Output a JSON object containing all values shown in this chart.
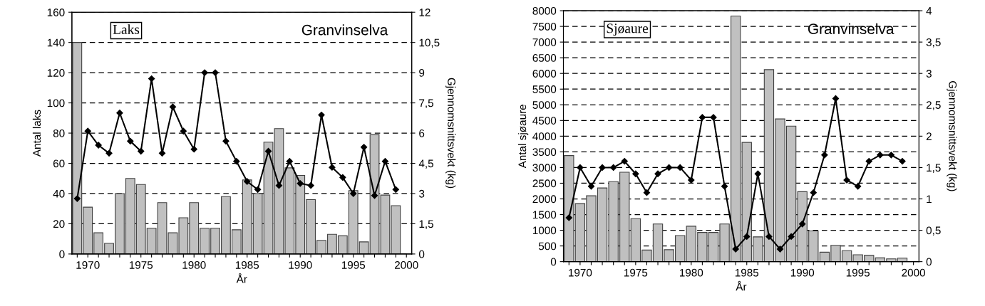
{
  "chart_data": [
    {
      "type": "bar",
      "xlabel": "År",
      "ylabel": "Antal laks",
      "y2label": "Gjennomsnittsvekt (kg)",
      "annotations": [
        "Laks",
        "Granvinselva"
      ],
      "x": [
        1969,
        1970,
        1971,
        1972,
        1973,
        1974,
        1975,
        1976,
        1977,
        1978,
        1979,
        1980,
        1981,
        1982,
        1983,
        1984,
        1985,
        1986,
        1987,
        1988,
        1989,
        1990,
        1991,
        1992,
        1993,
        1994,
        1995,
        1996,
        1997,
        1998,
        1999
      ],
      "series": [
        {
          "color": "#c0c0c0",
          "values": [
            140,
            31,
            14,
            7,
            40,
            50,
            46,
            17,
            34,
            14,
            24,
            34,
            17,
            17,
            38,
            16,
            49,
            40,
            74,
            83,
            57,
            52,
            36,
            9,
            13,
            12,
            42,
            8,
            79,
            39,
            32
          ]
        },
        {
          "type": "line",
          "axis": "y2",
          "color": "#000000",
          "marker": "diamond",
          "line_style": "solid",
          "values": [
            2.75,
            6.1,
            5.4,
            5.0,
            7.0,
            5.6,
            5.1,
            8.7,
            5.0,
            7.3,
            6.1,
            5.2,
            9.0,
            9.0,
            5.6,
            4.6,
            3.6,
            3.2,
            5.1,
            3.4,
            4.6,
            3.5,
            3.4,
            6.9,
            4.3,
            3.8,
            3.0,
            5.3,
            2.9,
            4.6,
            3.2
          ]
        }
      ],
      "xlim": [
        1968.5,
        2000.5
      ],
      "xticks": [
        {
          "value": 1969,
          "label": null
        },
        1970,
        {
          "value": 1971,
          "label": null
        },
        {
          "value": 1972,
          "label": null
        },
        {
          "value": 1973,
          "label": null
        },
        {
          "value": 1974,
          "label": null
        },
        1975,
        {
          "value": 1976,
          "label": null
        },
        {
          "value": 1977,
          "label": null
        },
        {
          "value": 1978,
          "label": null
        },
        {
          "value": 1979,
          "label": null
        },
        1980,
        {
          "value": 1981,
          "label": null
        },
        {
          "value": 1982,
          "label": null
        },
        {
          "value": 1983,
          "label": null
        },
        {
          "value": 1984,
          "label": null
        },
        1985,
        {
          "value": 1986,
          "label": null
        },
        {
          "value": 1987,
          "label": null
        },
        {
          "value": 1988,
          "label": null
        },
        {
          "value": 1989,
          "label": null
        },
        1990,
        {
          "value": 1991,
          "label": null
        },
        {
          "value": 1992,
          "label": null
        },
        {
          "value": 1993,
          "label": null
        },
        {
          "value": 1994,
          "label": null
        },
        1995,
        {
          "value": 1996,
          "label": null
        },
        {
          "value": 1997,
          "label": null
        },
        {
          "value": 1998,
          "label": null
        },
        {
          "value": 1999,
          "label": null
        },
        2000
      ],
      "ylim": [
        0,
        160
      ],
      "yticks": [
        0,
        20,
        40,
        60,
        80,
        100,
        120,
        140,
        160
      ],
      "y2lim": [
        0,
        12
      ],
      "y2ticks": [
        0,
        {
          "value": 1.5,
          "label": "1,5"
        },
        3,
        {
          "value": 4.5,
          "label": "4,5"
        },
        6,
        {
          "value": 7.5,
          "label": "7,5"
        },
        9,
        {
          "value": 10.5,
          "label": "10,5"
        },
        12
      ],
      "grid": "y",
      "legend": false
    },
    {
      "type": "bar",
      "xlabel": "År",
      "ylabel": "Antal sjøaure",
      "y2label": "Gjennomsnittsvekt (kg)",
      "annotations": [
        "Sjøaure",
        "Granvinselva"
      ],
      "x": [
        1969,
        1970,
        1971,
        1972,
        1973,
        1974,
        1975,
        1976,
        1977,
        1978,
        1979,
        1980,
        1981,
        1982,
        1983,
        1984,
        1985,
        1986,
        1987,
        1988,
        1989,
        1990,
        1991,
        1992,
        1993,
        1994,
        1995,
        1996,
        1997,
        1998,
        1999
      ],
      "series": [
        {
          "color": "#c0c0c0",
          "values": [
            3380,
            1850,
            2100,
            2350,
            2550,
            2850,
            1370,
            370,
            1200,
            380,
            830,
            1130,
            930,
            930,
            1200,
            7830,
            3800,
            790,
            6120,
            4550,
            4320,
            2230,
            980,
            300,
            520,
            350,
            220,
            200,
            120,
            90,
            110
          ]
        },
        {
          "type": "line",
          "axis": "y2",
          "color": "#000000",
          "marker": "diamond",
          "line_style": "solid",
          "values": [
            0.7,
            1.5,
            1.2,
            1.5,
            1.5,
            1.6,
            1.4,
            1.1,
            1.4,
            1.5,
            1.5,
            1.3,
            2.3,
            2.3,
            1.2,
            0.2,
            0.4,
            1.4,
            0.4,
            0.2,
            0.4,
            0.6,
            1.1,
            1.7,
            2.6,
            1.3,
            1.2,
            1.6,
            1.7,
            1.7,
            1.6
          ]
        }
      ],
      "xlim": [
        1968.5,
        2000.5
      ],
      "xticks": [
        {
          "value": 1969,
          "label": null
        },
        1970,
        {
          "value": 1971,
          "label": null
        },
        {
          "value": 1972,
          "label": null
        },
        {
          "value": 1973,
          "label": null
        },
        {
          "value": 1974,
          "label": null
        },
        1975,
        {
          "value": 1976,
          "label": null
        },
        {
          "value": 1977,
          "label": null
        },
        {
          "value": 1978,
          "label": null
        },
        {
          "value": 1979,
          "label": null
        },
        1980,
        {
          "value": 1981,
          "label": null
        },
        {
          "value": 1982,
          "label": null
        },
        {
          "value": 1983,
          "label": null
        },
        {
          "value": 1984,
          "label": null
        },
        1985,
        {
          "value": 1986,
          "label": null
        },
        {
          "value": 1987,
          "label": null
        },
        {
          "value": 1988,
          "label": null
        },
        {
          "value": 1989,
          "label": null
        },
        1990,
        {
          "value": 1991,
          "label": null
        },
        {
          "value": 1992,
          "label": null
        },
        {
          "value": 1993,
          "label": null
        },
        {
          "value": 1994,
          "label": null
        },
        1995,
        {
          "value": 1996,
          "label": null
        },
        {
          "value": 1997,
          "label": null
        },
        {
          "value": 1998,
          "label": null
        },
        {
          "value": 1999,
          "label": null
        },
        2000
      ],
      "ylim": [
        0,
        8000
      ],
      "yticks": [
        0,
        500,
        1000,
        1500,
        2000,
        2500,
        3000,
        3500,
        4000,
        4500,
        5000,
        5500,
        6000,
        6500,
        7000,
        7500,
        8000
      ],
      "y2lim": [
        0,
        4
      ],
      "y2ticks": [
        0,
        {
          "value": 0.5,
          "label": "0,5"
        },
        1,
        {
          "value": 1.5,
          "label": "1,5"
        },
        2,
        {
          "value": 2.5,
          "label": "2,5"
        },
        3,
        {
          "value": 3.5,
          "label": "3,5"
        },
        4
      ],
      "grid": "y",
      "legend": false
    }
  ]
}
